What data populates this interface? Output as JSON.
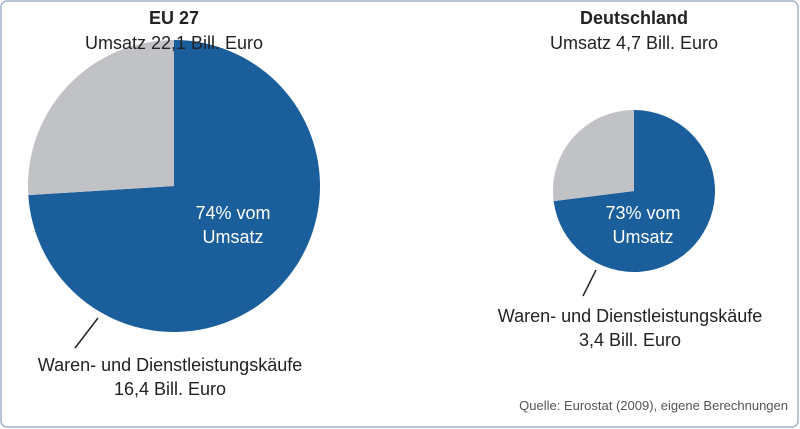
{
  "chart_data": [
    {
      "type": "pie",
      "title": "EU 27",
      "subtitle": "Umsatz 22,1 Bill. Euro",
      "categories": [
        "Waren- und Dienstleistungskäufe",
        null
      ],
      "values": [
        74,
        26
      ],
      "value_labels": [
        "74% vom Umsatz",
        null
      ],
      "colors": [
        "#1a5e9b",
        "#c1c2c5"
      ],
      "annotation": "16,4 Bill. Euro"
    },
    {
      "type": "pie",
      "title": "Deutschland",
      "subtitle": "Umsatz 4,7 Bill. Euro",
      "categories": [
        "Waren- und Dienstleistungskäufe",
        null
      ],
      "values": [
        73,
        27
      ],
      "value_labels": [
        "73% vom Umsatz",
        null
      ],
      "colors": [
        "#1a5e9b",
        "#c1c2c5"
      ],
      "annotation": "3,4 Bill. Euro"
    }
  ],
  "source": "Quelle: Eurostat (2009), eigene Berechnungen"
}
